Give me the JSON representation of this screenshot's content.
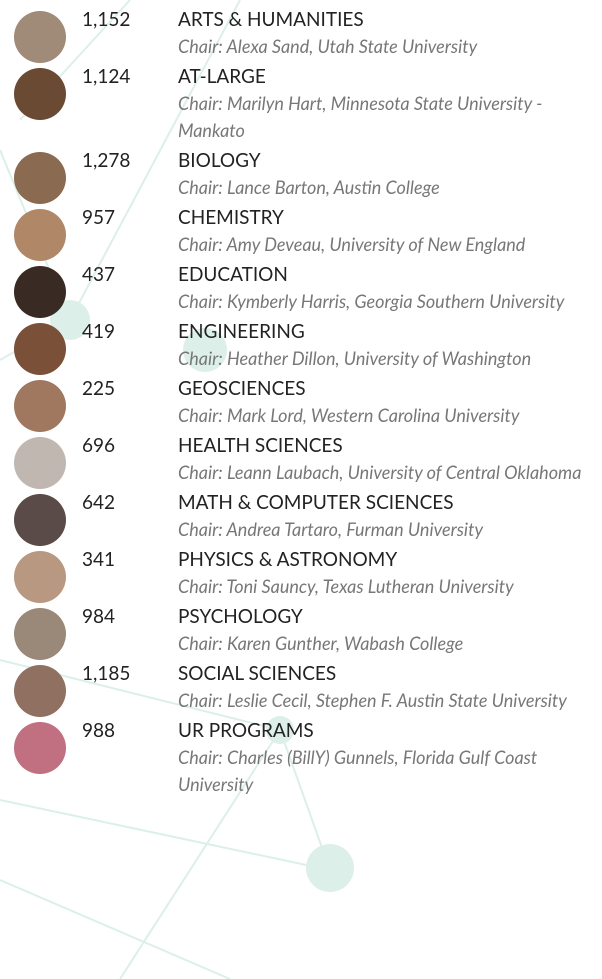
{
  "divisions": [
    {
      "count": "1,152",
      "name": "ARTS & HUMANITIES",
      "chair": "Chair: Alexa Sand, Utah State University"
    },
    {
      "count": "1,124",
      "name": "AT-LARGE",
      "chair": "Chair: Marilyn Hart, Minnesota State University - Mankato"
    },
    {
      "count": "1,278",
      "name": "BIOLOGY",
      "chair": "Chair: Lance Barton, Austin College"
    },
    {
      "count": "957",
      "name": "CHEMISTRY",
      "chair": "Chair: Amy Deveau, University of New England"
    },
    {
      "count": "437",
      "name": "EDUCATION",
      "chair": "Chair: Kymberly Harris, Georgia Southern University"
    },
    {
      "count": "419",
      "name": "ENGINEERING",
      "chair": "Chair: Heather Dillon, University of Washington"
    },
    {
      "count": "225",
      "name": "GEOSCIENCES",
      "chair": "Chair: Mark Lord, Western Carolina University"
    },
    {
      "count": "696",
      "name": "HEALTH SCIENCES",
      "chair": "Chair: Leann Laubach, University of Central Oklahoma"
    },
    {
      "count": "642",
      "name": "MATH & COMPUTER SCIENCES",
      "chair": "Chair: Andrea Tartaro, Furman University"
    },
    {
      "count": "341",
      "name": "PHYSICS & ASTRONOMY",
      "chair": "Chair: Toni Sauncy, Texas Lutheran University"
    },
    {
      "count": "984",
      "name": "PSYCHOLOGY",
      "chair": "Chair: Karen Gunther, Wabash College"
    },
    {
      "count": "1,185",
      "name": "SOCIAL SCIENCES",
      "chair": "Chair: Leslie Cecil, Stephen F. Austin State University"
    },
    {
      "count": "988",
      "name": "UR PROGRAMS",
      "chair": "Chair: Charles (BillY) Gunnels, Florida Gulf Coast University"
    }
  ]
}
